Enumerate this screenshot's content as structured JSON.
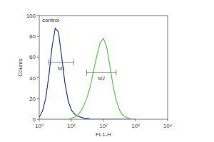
{
  "chart_data": {
    "type": "line",
    "x_label": "FL1-H",
    "y_label": "Counts",
    "log": "x",
    "xlim": [
      1,
      10000
    ],
    "xticks": [
      {
        "value": 1,
        "label": "10⁰"
      },
      {
        "value": 10,
        "label": "10¹"
      },
      {
        "value": 100,
        "label": "10²"
      },
      {
        "value": 1000,
        "label": "10³"
      },
      {
        "value": 10000,
        "label": "10⁴"
      }
    ],
    "ylim": [
      0,
      100
    ],
    "yticks": [
      0,
      20,
      40,
      60,
      80,
      100
    ],
    "x": [
      1,
      1.26,
      1.58,
      2,
      2.51,
      3.16,
      3.98,
      5.01,
      6.31,
      7.94,
      10,
      12.6,
      15.8,
      20,
      25.1,
      31.6,
      39.8,
      50.1,
      63.1,
      79.4,
      100,
      126,
      158,
      200,
      251,
      316,
      398,
      501,
      631,
      794,
      1000
    ],
    "series": [
      {
        "name": "control",
        "color": "#1f3a9c",
        "values": [
          2,
          8,
          20,
          42,
          70,
          88,
          84,
          60,
          35,
          18,
          9,
          5,
          3,
          2,
          1,
          1,
          0,
          0,
          0,
          0,
          0,
          0,
          0,
          0,
          0,
          0,
          0,
          0,
          0,
          0,
          0
        ]
      },
      {
        "color": "#5cc84a",
        "values": [
          0,
          0,
          0,
          0,
          0,
          0,
          0,
          0,
          0,
          0,
          1,
          2,
          4,
          8,
          14,
          22,
          33,
          48,
          62,
          74,
          78,
          70,
          52,
          32,
          18,
          9,
          4,
          2,
          1,
          0,
          0
        ]
      }
    ],
    "gates": [
      {
        "label": "M1",
        "x": [
          2,
          12
        ],
        "y": 55
      },
      {
        "label": "M2",
        "x": [
          30,
          250
        ],
        "y": 45
      }
    ]
  }
}
